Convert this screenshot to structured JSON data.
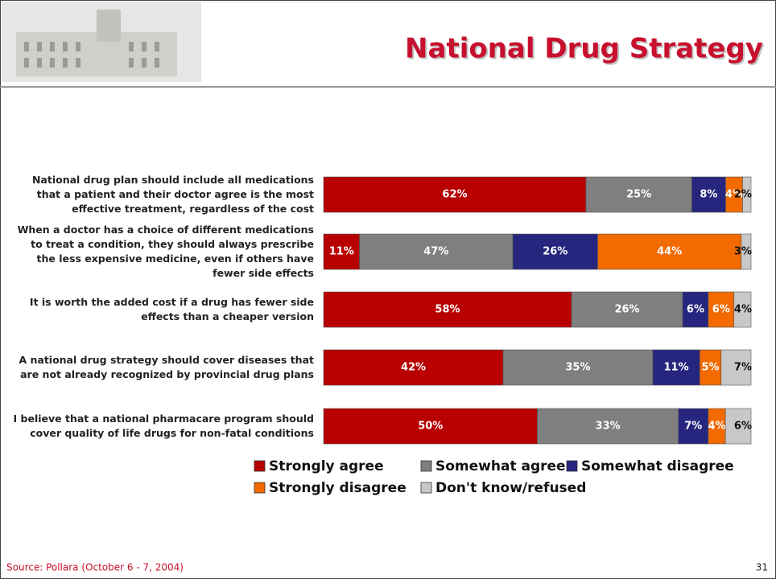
{
  "chart_data": {
    "type": "bar",
    "orientation": "horizontal",
    "stacking": "percent",
    "title": "National Drug Strategy",
    "categories": [
      "National drug plan should include all medications that a patient and their doctor agree is the most effective treatment, regardless of the cost",
      "When a doctor has a choice of different medications to treat a condition, they should always prescribe the less expensive medicine, even if others have fewer side effects",
      "It is worth the added cost if a drug has fewer side effects than a cheaper version",
      "A national drug strategy should cover diseases that are not already recognized by provincial drug plans",
      "I believe that a national pharmacare program should cover quality of life drugs for non-fatal conditions"
    ],
    "series": [
      {
        "name": "Strongly agree",
        "color": "#b80000",
        "values": [
          62,
          11,
          58,
          42,
          50
        ],
        "value_labels": [
          "62%",
          "11%",
          "58%",
          "42%",
          "50%"
        ]
      },
      {
        "name": "Somewhat agree",
        "color": "#7f7f7f",
        "values": [
          25,
          47,
          26,
          35,
          33
        ],
        "value_labels": [
          "25%",
          "47%",
          "26%",
          "35%",
          "33%"
        ]
      },
      {
        "name": "Somewhat disagree",
        "color": "#26267f",
        "values": [
          8,
          26,
          6,
          11,
          7
        ],
        "value_labels": [
          "8%",
          "26%",
          "6%",
          "11%",
          "7%"
        ]
      },
      {
        "name": "Strongly disagree",
        "color": "#f26a00",
        "values": [
          4,
          44,
          6,
          5,
          4
        ],
        "value_labels": [
          "4%",
          "44%",
          "6%",
          "5%",
          "4%"
        ]
      },
      {
        "name": "Don't know/refused",
        "color": "#c8c8c8",
        "values": [
          2,
          3,
          4,
          7,
          6
        ],
        "value_labels": [
          "2%",
          "3%",
          "4%",
          "7%",
          "6%"
        ]
      }
    ],
    "legend": "bottom"
  },
  "source": "Source: Pollara (October 6 - 7, 2004)",
  "page_number": "31"
}
